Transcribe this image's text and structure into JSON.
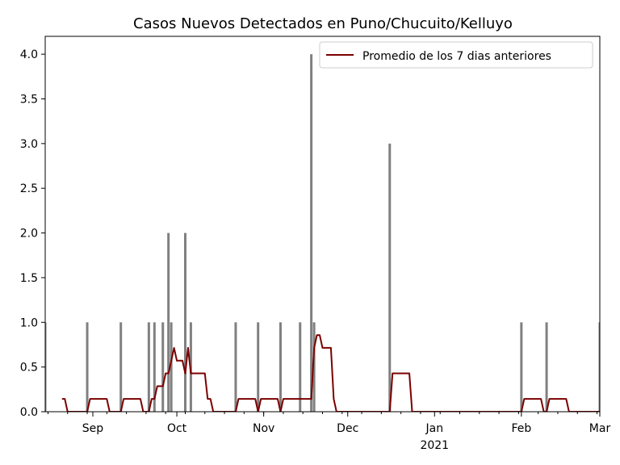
{
  "chart_data": {
    "type": "bar",
    "title": "Casos Nuevos Detectados en Puno/Chucuito/Kelluyo",
    "xlabel": "",
    "ylabel": "",
    "x_range": [
      "2020-08-15",
      "2021-03-01"
    ],
    "ylim": [
      0,
      4.2
    ],
    "y_ticks": [
      0.0,
      0.5,
      1.0,
      1.5,
      2.0,
      2.5,
      3.0,
      3.5,
      4.0
    ],
    "y_tick_labels": [
      "0.0",
      "0.5",
      "1.0",
      "1.5",
      "2.0",
      "2.5",
      "3.0",
      "3.5",
      "4.0"
    ],
    "x_ticks": [
      {
        "date": "2020-09-01",
        "label": "Sep",
        "sublabel": ""
      },
      {
        "date": "2020-10-01",
        "label": "Oct",
        "sublabel": ""
      },
      {
        "date": "2020-11-01",
        "label": "Nov",
        "sublabel": ""
      },
      {
        "date": "2020-12-01",
        "label": "Dec",
        "sublabel": ""
      },
      {
        "date": "2021-01-01",
        "label": "Jan",
        "sublabel": "2021"
      },
      {
        "date": "2021-02-01",
        "label": "Feb",
        "sublabel": ""
      },
      {
        "date": "2021-03-01",
        "label": "Mar",
        "sublabel": ""
      }
    ],
    "grid": false,
    "legend_position": "top-right",
    "bar_series": {
      "name": "",
      "color": "#808080",
      "points": [
        {
          "date": "2020-08-15",
          "value": 1
        },
        {
          "date": "2020-08-30",
          "value": 1
        },
        {
          "date": "2020-09-11",
          "value": 1
        },
        {
          "date": "2020-09-21",
          "value": 1
        },
        {
          "date": "2020-09-23",
          "value": 1
        },
        {
          "date": "2020-09-26",
          "value": 1
        },
        {
          "date": "2020-09-28",
          "value": 2
        },
        {
          "date": "2020-09-29",
          "value": 1
        },
        {
          "date": "2020-10-04",
          "value": 2
        },
        {
          "date": "2020-10-06",
          "value": 1
        },
        {
          "date": "2020-10-22",
          "value": 1
        },
        {
          "date": "2020-10-30",
          "value": 1
        },
        {
          "date": "2020-11-07",
          "value": 1
        },
        {
          "date": "2020-11-14",
          "value": 1
        },
        {
          "date": "2020-11-18",
          "value": 4
        },
        {
          "date": "2020-11-19",
          "value": 1
        },
        {
          "date": "2020-12-16",
          "value": 3
        },
        {
          "date": "2021-02-01",
          "value": 1
        },
        {
          "date": "2021-02-10",
          "value": 1
        },
        {
          "date": "2021-03-01",
          "value": 1
        }
      ]
    },
    "line_series": {
      "name": "Promedio de los 7 dias anteriores",
      "color": "#7b0000",
      "window_days": 7,
      "start_date": "2020-08-21"
    }
  }
}
